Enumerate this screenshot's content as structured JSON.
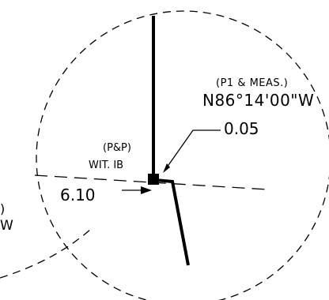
{
  "drawing": {
    "top_label_source": "(P1 & MEAS.)",
    "top_label_bearing": "N86°14'00\"W",
    "offset_distance": "0.05",
    "monument_source": "(P&P)",
    "monument_desc": "WIT. IB",
    "tie_distance": "6.10",
    "partial_label_1": ")",
    "partial_label_2": "W",
    "line_color": "#000000",
    "background_color": "#ffffff"
  }
}
